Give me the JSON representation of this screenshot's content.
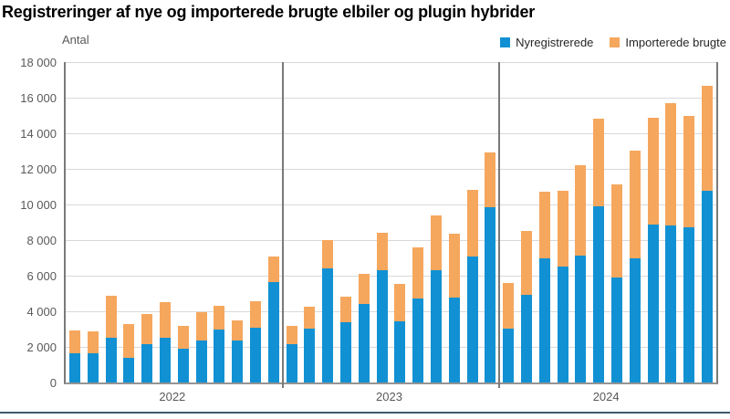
{
  "header": {
    "title": "Registreringer af nye og importerede brugte elbiler og plugin hybrider"
  },
  "chart_data": {
    "type": "bar",
    "variant": "stacked",
    "title": "Registreringer af nye og importerede brugte elbiler og plugin hybrider",
    "unit_label": "Antal",
    "xlabel": "",
    "ylabel": "Antal",
    "ylim": [
      0,
      18000
    ],
    "ytick_step": 2000,
    "ytick_labels": [
      "0",
      "2 000",
      "4 000",
      "6 000",
      "8 000",
      "10 000",
      "12 000",
      "14 000",
      "16 000",
      "18 000"
    ],
    "grid": true,
    "legend_position": "top-right",
    "legend": [
      {
        "label": "Nyregistrerede",
        "color": "#1191d3"
      },
      {
        "label": "Importerede brugte",
        "color": "#f6a75e"
      }
    ],
    "categories": [
      "2022",
      "2023",
      "2024"
    ],
    "groups": [
      {
        "label": "2022",
        "bars_per_group": 12,
        "series": [
          {
            "name": "Nyregistrerede",
            "values": [
              1650,
              1650,
              2500,
              1400,
              2150,
              2500,
              1900,
              2350,
              2950,
              2350,
              3100,
              5650
            ]
          },
          {
            "name": "Importerede brugte",
            "values": [
              1250,
              1200,
              2350,
              1900,
              1700,
              2000,
              1300,
              1600,
              1350,
              1150,
              1450,
              1450
            ]
          }
        ]
      },
      {
        "label": "2023",
        "bars_per_group": 12,
        "series": [
          {
            "name": "Nyregistrerede",
            "values": [
              2150,
              3050,
              6400,
              3400,
              4400,
              6300,
              3450,
              4700,
              6300,
              4750,
              7100,
              9850
            ]
          },
          {
            "name": "Importerede brugte",
            "values": [
              1050,
              1200,
              1600,
              1400,
              1700,
              2100,
              2100,
              2900,
              3100,
              3600,
              3700,
              3050
            ]
          }
        ]
      },
      {
        "label": "2024",
        "bars_per_group": 12,
        "series": [
          {
            "name": "Nyregistrerede",
            "values": [
              3050,
              4900,
              7000,
              6500,
              7150,
              9900,
              5900,
              7000,
              8850,
              8800,
              8700,
              10750
            ]
          },
          {
            "name": "Importerede brugte",
            "values": [
              2550,
              3600,
              3700,
              4250,
              5050,
              4900,
              5250,
              6050,
              6000,
              6900,
              6250,
              5900
            ]
          }
        ]
      }
    ],
    "colors": {
      "nyregistrerede": "#1191d3",
      "importerede_brugte": "#f6a75e",
      "axis": "#7a7a7a",
      "gridline": "#d9d9d9",
      "tick_text": "#595959",
      "bottom_rule": "#3c5a6d"
    }
  }
}
